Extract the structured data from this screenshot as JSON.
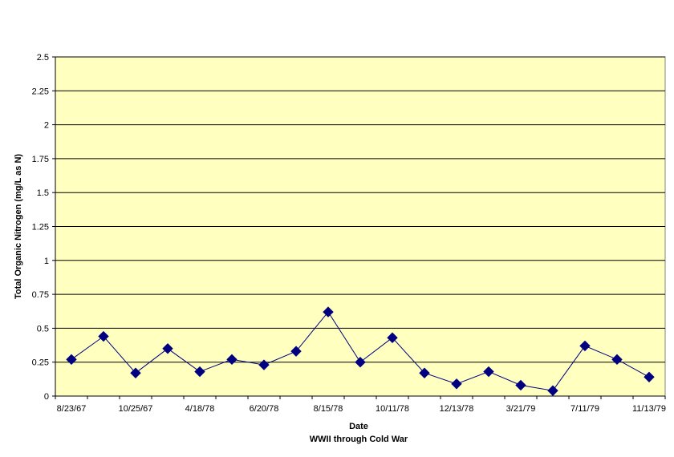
{
  "chart_data": {
    "type": "line",
    "title": "",
    "xlabel": "Date",
    "xlabel_sub": "WWII through Cold War",
    "ylabel": "Total Organic Nitrogen (mg/L as N)",
    "ylim": [
      0,
      2.5
    ],
    "yticks": [
      "0",
      "0.25",
      "0.5",
      "0.75",
      "1",
      "1.25",
      "1.5",
      "1.75",
      "2",
      "2.25",
      "2.5"
    ],
    "x": [
      "8/23/67",
      "",
      "10/25/67",
      "",
      "4/18/78",
      "",
      "6/20/78",
      "",
      "8/15/78",
      "",
      "10/11/78",
      "",
      "12/13/78",
      "",
      "3/21/79",
      "",
      "7/11/79",
      "",
      "11/13/79"
    ],
    "xtick_labels": [
      "8/23/67",
      "10/25/67",
      "4/18/78",
      "6/20/78",
      "8/15/78",
      "10/11/78",
      "12/13/78",
      "3/21/79",
      "7/11/79",
      "11/13/79"
    ],
    "series": [
      {
        "values": [
          0.27,
          0.44,
          0.17,
          0.35,
          0.18,
          0.27,
          0.23,
          0.33,
          0.62,
          0.25,
          0.43,
          0.17,
          0.09,
          0.18,
          0.08,
          0.04,
          0.37,
          0.27,
          0.14
        ]
      }
    ],
    "grid": true,
    "legend": "none",
    "colors": {
      "plot_background": "#FFFFC0",
      "series": "#000080",
      "grid": "#000000"
    }
  }
}
